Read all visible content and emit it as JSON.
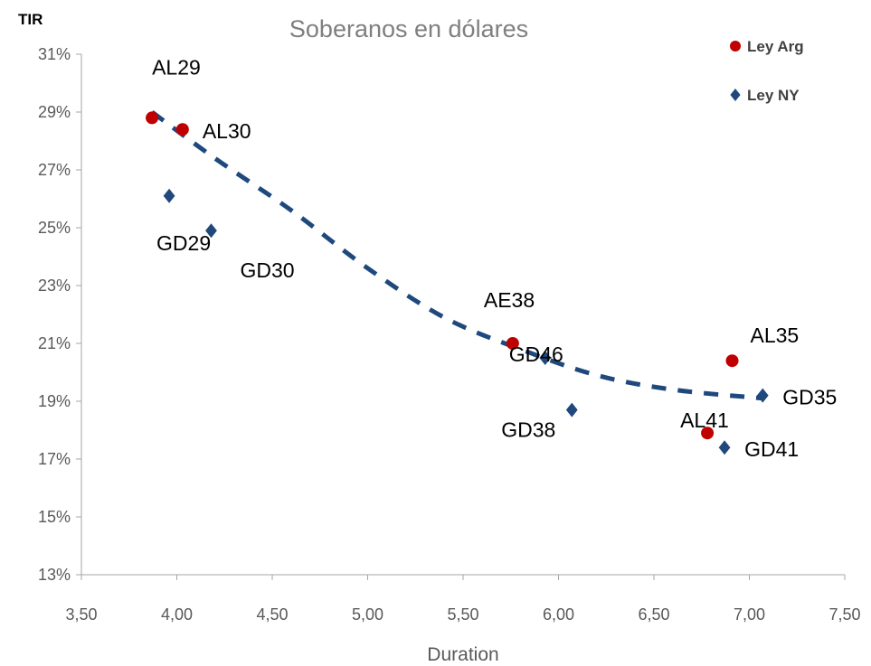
{
  "chart_data": {
    "type": "scatter",
    "title": "Soberanos en dólares",
    "xlabel": "Duration",
    "ylabel": "TIR",
    "xlim": [
      3.5,
      7.5
    ],
    "ylim": [
      13,
      31
    ],
    "x_ticks": [
      "3,50",
      "4,00",
      "4,50",
      "5,00",
      "5,50",
      "6,00",
      "6,50",
      "7,00",
      "7,50"
    ],
    "y_ticks": [
      "13%",
      "15%",
      "17%",
      "19%",
      "21%",
      "23%",
      "25%",
      "27%",
      "29%",
      "31%"
    ],
    "grid": false,
    "legend_position": "top-right",
    "series": [
      {
        "name": "Ley Arg",
        "marker": "circle",
        "color": "#c00000",
        "points": [
          {
            "label": "AL29",
            "x": 3.87,
            "y": 28.8
          },
          {
            "label": "AL30",
            "x": 4.03,
            "y": 28.4
          },
          {
            "label": "AE38",
            "x": 5.76,
            "y": 21.0
          },
          {
            "label": "AL41",
            "x": 6.78,
            "y": 17.9
          },
          {
            "label": "AL35",
            "x": 6.91,
            "y": 20.4
          }
        ]
      },
      {
        "name": "Ley NY",
        "marker": "diamond",
        "color": "#1f497d",
        "points": [
          {
            "label": "GD29",
            "x": 3.96,
            "y": 26.1
          },
          {
            "label": "GD30",
            "x": 4.18,
            "y": 24.9
          },
          {
            "label": "GD46",
            "x": 5.93,
            "y": 20.5
          },
          {
            "label": "GD38",
            "x": 6.07,
            "y": 18.7
          },
          {
            "label": "GD41",
            "x": 6.87,
            "y": 17.4
          },
          {
            "label": "GD35",
            "x": 7.07,
            "y": 19.2
          }
        ]
      }
    ],
    "trendline": {
      "style": "dashed",
      "color": "#1f497d",
      "points": [
        {
          "x": 3.87,
          "y": 29.0
        },
        {
          "x": 4.2,
          "y": 27.4
        },
        {
          "x": 4.6,
          "y": 25.6
        },
        {
          "x": 5.0,
          "y": 23.6
        },
        {
          "x": 5.4,
          "y": 21.9
        },
        {
          "x": 5.8,
          "y": 20.8
        },
        {
          "x": 6.2,
          "y": 19.9
        },
        {
          "x": 6.6,
          "y": 19.4
        },
        {
          "x": 7.07,
          "y": 19.1
        }
      ]
    }
  }
}
